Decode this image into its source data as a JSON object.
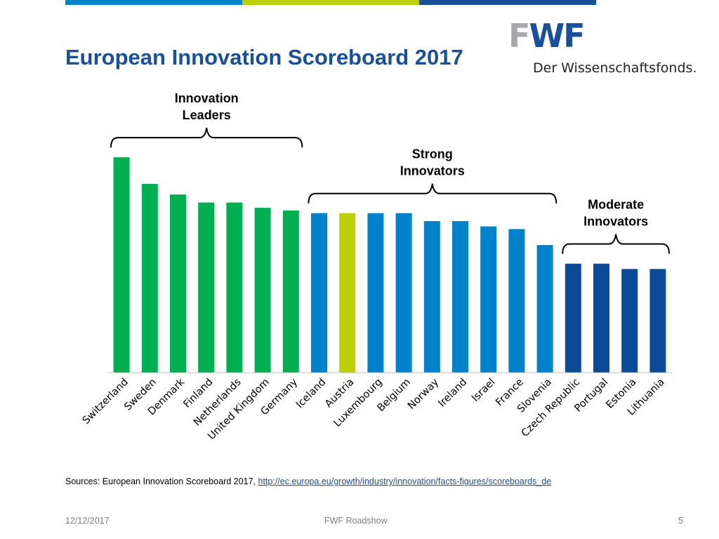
{
  "slide": {
    "title": "European Innovation Scoreboard 2017",
    "stripe_colors": [
      "#0085c8",
      "#bccf00",
      "#1a4f9c"
    ]
  },
  "logo": {
    "mark_part1": "F",
    "mark_part2": "WF",
    "tagline": "Der Wissenschaftsfonds."
  },
  "chart_data": {
    "type": "bar",
    "title": "",
    "xlabel": "",
    "ylabel": "",
    "categories": [
      "Switzerland",
      "Sweden",
      "Denmark",
      "Finland",
      "Netherlands",
      "United Kingdom",
      "Germany",
      "Iceland",
      "Austria",
      "Luxembourg",
      "Belgium",
      "Norway",
      "Ireland",
      "Israel",
      "France",
      "Slovenia",
      "Czech Republic",
      "Portugal",
      "Estonia",
      "Lithuania"
    ],
    "values": [
      0.81,
      0.71,
      0.67,
      0.64,
      0.64,
      0.62,
      0.61,
      0.6,
      0.6,
      0.6,
      0.6,
      0.57,
      0.57,
      0.55,
      0.54,
      0.48,
      0.41,
      0.41,
      0.39,
      0.39
    ],
    "ylim": [
      0,
      0.85
    ],
    "grid": false,
    "groups": [
      {
        "label": "Innovation Leaders",
        "from": 0,
        "to": 6,
        "color": "#00b050"
      },
      {
        "label": "Strong Innovators",
        "from": 7,
        "to": 15,
        "color": "#0082ca"
      },
      {
        "label": "Moderate Innovators",
        "from": 16,
        "to": 19,
        "color": "#0a4a97"
      }
    ],
    "highlight": {
      "index": 8,
      "color": "#bccf00"
    }
  },
  "sources": {
    "prefix": "Sources:  European Innovation Scoreboard 2017, ",
    "link_text": "http://ec.europa.eu/growth/industry/innovation/facts-figures/scoreboards_de"
  },
  "footer": {
    "date": "12/12/2017",
    "center": "FWF Roadshow",
    "page": "5"
  }
}
